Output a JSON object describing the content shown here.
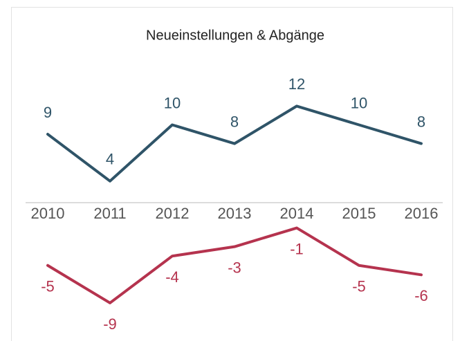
{
  "chart_data": {
    "type": "line",
    "title": "Neueinstellungen & Abgänge",
    "categories": [
      "2010",
      "2011",
      "2012",
      "2013",
      "2014",
      "2015",
      "2016"
    ],
    "series": [
      {
        "name": "Neueinstellungen",
        "color": "#2f5468",
        "values": [
          9,
          4,
          10,
          8,
          12,
          10,
          8
        ]
      },
      {
        "name": "Abgänge",
        "color": "#b5334e",
        "values": [
          -5,
          -9,
          -4,
          -3,
          -1,
          -5,
          -6
        ]
      }
    ],
    "ylim": [
      -12,
      14
    ],
    "grid": false
  }
}
